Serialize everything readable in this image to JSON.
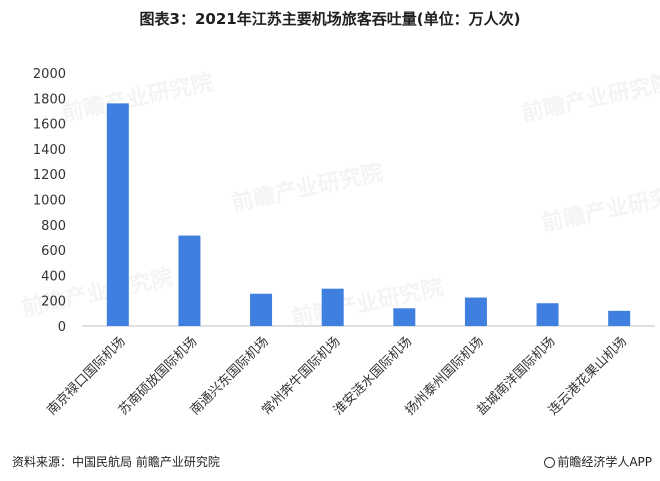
{
  "title": "图表3：2021年江苏主要机场旅客吞吐量(单位：万人次)",
  "watermark_text": "前瞻产业研究院",
  "footer": {
    "source": "资料来源：中国民航局 前瞻产业研究院",
    "brand": "前瞻经济学人APP"
  },
  "colors": {
    "bar": "#3f7fe0",
    "axis": "#bfbfbf"
  },
  "chart_data": {
    "type": "bar",
    "title": "图表3：2021年江苏主要机场旅客吞吐量(单位：万人次)",
    "categories": [
      "南京禄口国际机场",
      "苏南硕放国际机场",
      "南通兴东国际机场",
      "常州奔牛国际机场",
      "淮安涟水国际机场",
      "扬州泰州国际机场",
      "盐城南洋国际机场",
      "连云港花果山机场"
    ],
    "values": [
      1760,
      715,
      255,
      295,
      140,
      225,
      180,
      120
    ],
    "ylim": [
      0,
      2000
    ],
    "yticks": [
      0,
      200,
      400,
      600,
      800,
      1000,
      1200,
      1400,
      1600,
      1800,
      2000
    ],
    "grid": false
  }
}
